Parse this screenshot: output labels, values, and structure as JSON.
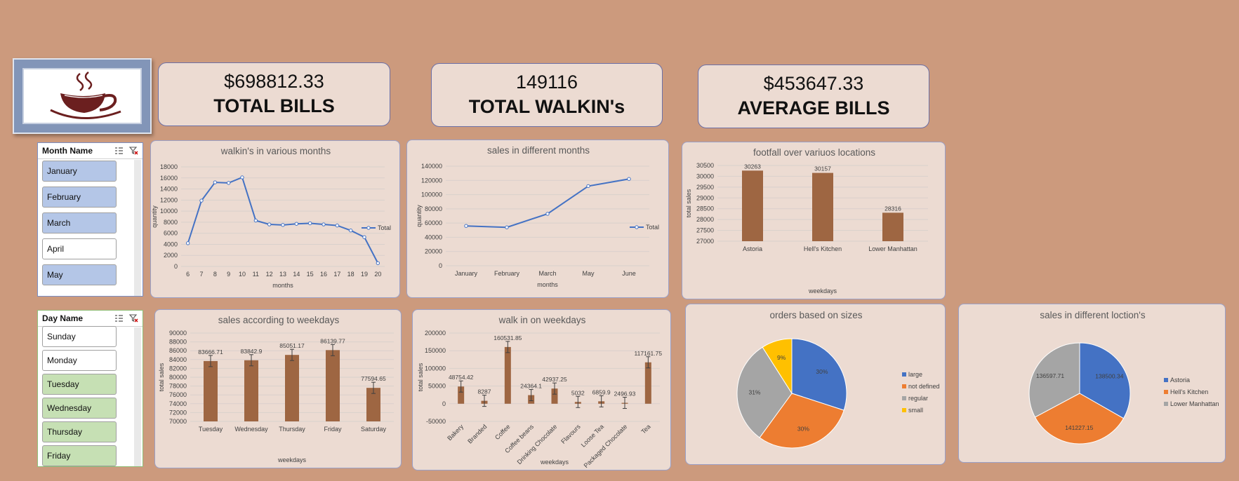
{
  "kpis": {
    "total_bills": {
      "value": "$698812.33",
      "label": "TOTAL BILLS"
    },
    "total_walkins": {
      "value": "149116",
      "label": "TOTAL WALKIN's"
    },
    "average_bills": {
      "value": "$453647.33",
      "label": "AVERAGE BILLS"
    }
  },
  "logo_icon": "coffee-cup-icon",
  "colors": {
    "background": "#cc9a7d",
    "panel": "#ecdbd2",
    "bar": "#9e6642",
    "line": "#4472c4",
    "selected_month": "#b4c6e7",
    "selected_day": "#c6e0b4"
  },
  "month_slicer": {
    "title": "Month Name",
    "items": [
      {
        "label": "January",
        "selected": true
      },
      {
        "label": "February",
        "selected": true
      },
      {
        "label": "March",
        "selected": true
      },
      {
        "label": "April",
        "selected": false
      },
      {
        "label": "May",
        "selected": true
      }
    ]
  },
  "day_slicer": {
    "title": "Day Name",
    "items": [
      {
        "label": "Sunday",
        "selected": false
      },
      {
        "label": "Monday",
        "selected": false
      },
      {
        "label": "Tuesday",
        "selected": true
      },
      {
        "label": "Wednesday",
        "selected": true
      },
      {
        "label": "Thursday",
        "selected": true
      },
      {
        "label": "Friday",
        "selected": true
      }
    ]
  },
  "chart_data": [
    {
      "id": "walkins",
      "type": "line",
      "title": "walkin's in various months",
      "xlabel": "months",
      "ylabel": "quantity",
      "categories": [
        "6",
        "7",
        "8",
        "9",
        "10",
        "11",
        "12",
        "13",
        "14",
        "15",
        "16",
        "17",
        "18",
        "19",
        "20"
      ],
      "series": [
        {
          "name": "Total",
          "values": [
            4200,
            11900,
            15200,
            15100,
            16100,
            8300,
            7600,
            7500,
            7700,
            7800,
            7600,
            7400,
            6500,
            5300,
            600
          ]
        }
      ],
      "ylim": [
        0,
        18000
      ],
      "yticks": [
        0,
        2000,
        4000,
        6000,
        8000,
        10000,
        12000,
        14000,
        16000,
        18000
      ],
      "legend": "right",
      "grid": true
    },
    {
      "id": "sales_months",
      "type": "line",
      "title": "sales in different months",
      "xlabel": "months",
      "ylabel": "quantity",
      "categories": [
        "January",
        "February",
        "March",
        "May",
        "June"
      ],
      "series": [
        {
          "name": "Total",
          "values": [
            56000,
            54000,
            73000,
            112000,
            122000
          ]
        }
      ],
      "ylim": [
        0,
        140000
      ],
      "yticks": [
        0,
        20000,
        40000,
        60000,
        80000,
        100000,
        120000,
        140000
      ],
      "legend": "right",
      "grid": true
    },
    {
      "id": "footfall",
      "type": "bar",
      "title": "footfall over variuos locations",
      "xlabel": "weekdays",
      "ylabel": "total sales",
      "categories": [
        "Astoria",
        "Hell's Kitchen",
        "Lower Manhattan"
      ],
      "values": [
        30263,
        30157,
        28316
      ],
      "labels": [
        "30263",
        "30157",
        "28316"
      ],
      "ylim": [
        27000,
        30500
      ],
      "yticks": [
        27000,
        27500,
        28000,
        28500,
        29000,
        29500,
        30000,
        30500
      ],
      "grid": true
    },
    {
      "id": "sales_weekdays",
      "type": "bar",
      "title": "sales according to weekdays",
      "xlabel": "weekdays",
      "ylabel": "total sales",
      "categories": [
        "Tuesday",
        "Wednesday",
        "Thursday",
        "Friday",
        "Saturday"
      ],
      "values": [
        83666.71,
        83842.9,
        85051.17,
        86139.77,
        77594.65
      ],
      "labels": [
        "83666.71",
        "83842.9",
        "85051.17",
        "86139.77",
        "77594.65"
      ],
      "ylim": [
        70000,
        90000
      ],
      "yticks": [
        70000,
        72000,
        74000,
        76000,
        78000,
        80000,
        82000,
        84000,
        86000,
        88000,
        90000
      ],
      "grid": true
    },
    {
      "id": "walkin_weekdays",
      "type": "bar",
      "title": "walk in on weekdays",
      "xlabel": "weekdays",
      "ylabel": "total sales",
      "categories": [
        "Bakery",
        "Branded",
        "Coffee",
        "Coffee beans",
        "Drinking Chocolate",
        "Flavours",
        "Loose Tea",
        "Packaged Chocolate",
        "Tea"
      ],
      "values": [
        48754.42,
        8287,
        160531.85,
        24364.1,
        42937.25,
        5032,
        6859.9,
        2496.93,
        117161.75
      ],
      "labels": [
        "48754.42",
        "8287",
        "160531.85",
        "24364.1",
        "42937.25",
        "5032",
        "6859.9",
        "2496.93",
        "117161.75"
      ],
      "ylim": [
        -50000,
        200000
      ],
      "yticks": [
        -50000,
        0,
        50000,
        100000,
        150000,
        200000
      ],
      "grid": true
    },
    {
      "id": "sizes",
      "type": "pie",
      "title": "orders based on sizes",
      "categories": [
        "large",
        "not defined",
        "regular",
        "small"
      ],
      "values": [
        30,
        30,
        31,
        9
      ],
      "labels": [
        "30%",
        "30%",
        "31%",
        "9%"
      ],
      "colors": [
        "#4472c4",
        "#ed7d31",
        "#a5a5a5",
        "#ffc000"
      ],
      "legend": "right"
    },
    {
      "id": "locations",
      "type": "pie",
      "title": "sales in different loction's",
      "categories": [
        "Astoria",
        "Hell's Kitchen",
        "Lower Manhattan"
      ],
      "values": [
        138500.34,
        141227.15,
        136597.71
      ],
      "labels": [
        "138500.34",
        "141227.15",
        "136597.71"
      ],
      "colors": [
        "#4472c4",
        "#ed7d31",
        "#a5a5a5"
      ],
      "legend": "right"
    }
  ]
}
